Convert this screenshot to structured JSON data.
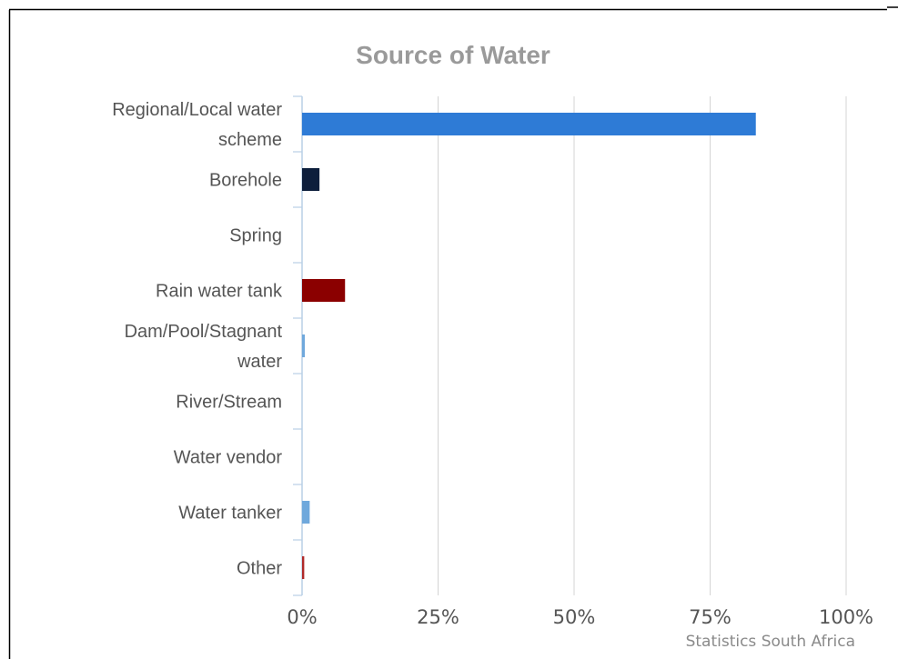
{
  "chart_data": {
    "type": "bar",
    "orientation": "horizontal",
    "title": "Source of Water",
    "categories": [
      [
        "Regional/Local water",
        "scheme"
      ],
      [
        "Borehole"
      ],
      [
        "Spring"
      ],
      [
        "Rain water tank"
      ],
      [
        "Dam/Pool/Stagnant",
        "water"
      ],
      [
        "River/Stream"
      ],
      [
        "Water vendor"
      ],
      [
        "Water tanker"
      ],
      [
        "Other"
      ]
    ],
    "values": [
      83.4,
      3.2,
      0.0,
      7.9,
      0.5,
      0.0,
      0.0,
      1.4,
      0.4
    ],
    "bar_colors": [
      "#2e7bd6",
      "#0c1e3c",
      "#ffffff",
      "#8b0000",
      "#6fa8dc",
      "#ffffff",
      "#ffffff",
      "#6fa8dc",
      "#b02a2a"
    ],
    "x_ticks": [
      "0%",
      "25%",
      "50%",
      "75%",
      "100%"
    ],
    "x_tick_values": [
      0,
      25,
      50,
      75,
      100
    ],
    "xlim": [
      0,
      100
    ],
    "grid": true,
    "source": "Statistics South Africa"
  }
}
